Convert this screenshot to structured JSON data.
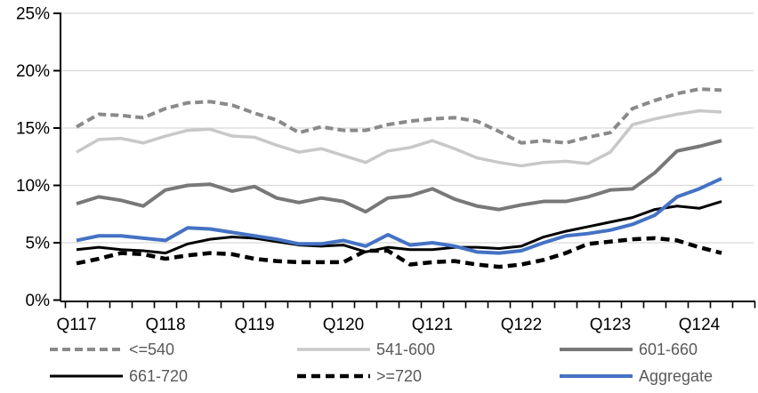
{
  "chart_data": {
    "type": "line",
    "title": "",
    "xlabel": "",
    "ylabel": "",
    "grid": true,
    "legend_position": "bottom",
    "ylim": [
      0,
      25
    ],
    "y_ticks": [
      {
        "label": "0%",
        "value": 0
      },
      {
        "label": "5%",
        "value": 5
      },
      {
        "label": "10%",
        "value": 10
      },
      {
        "label": "15%",
        "value": 15
      },
      {
        "label": "20%",
        "value": 20
      },
      {
        "label": "25%",
        "value": 25
      }
    ],
    "x_axis_labels": [
      {
        "label": "Q117",
        "index": 0
      },
      {
        "label": "Q118",
        "index": 4
      },
      {
        "label": "Q119",
        "index": 8
      },
      {
        "label": "Q120",
        "index": 12
      },
      {
        "label": "Q121",
        "index": 16
      },
      {
        "label": "Q122",
        "index": 20
      },
      {
        "label": "Q123",
        "index": 24
      },
      {
        "label": "Q124",
        "index": 28
      }
    ],
    "categories": [
      "Q117",
      "Q217",
      "Q317",
      "Q417",
      "Q118",
      "Q218",
      "Q318",
      "Q418",
      "Q119",
      "Q219",
      "Q319",
      "Q419",
      "Q120",
      "Q220",
      "Q320",
      "Q420",
      "Q121",
      "Q221",
      "Q321",
      "Q421",
      "Q122",
      "Q222",
      "Q322",
      "Q422",
      "Q123",
      "Q223",
      "Q323",
      "Q423",
      "Q124",
      "Q224"
    ],
    "series": [
      {
        "name": "<=540",
        "color": "#8a8a8a",
        "dash": "9 5",
        "width": 4,
        "values": [
          15.1,
          16.2,
          16.1,
          15.9,
          16.7,
          17.2,
          17.3,
          17.0,
          16.3,
          15.7,
          14.6,
          15.1,
          14.8,
          14.8,
          15.3,
          15.6,
          15.8,
          15.9,
          15.6,
          14.7,
          13.7,
          13.9,
          13.7,
          14.2,
          14.6,
          16.7,
          17.4,
          18.0,
          18.4,
          18.3
        ]
      },
      {
        "name": "541-600",
        "color": "#c8c8c8",
        "dash": null,
        "width": 3.5,
        "values": [
          12.9,
          14.0,
          14.1,
          13.7,
          14.3,
          14.8,
          14.9,
          14.3,
          14.2,
          13.5,
          12.9,
          13.2,
          12.6,
          12.0,
          13.0,
          13.3,
          13.9,
          13.2,
          12.4,
          12.0,
          11.7,
          12.0,
          12.1,
          11.9,
          12.9,
          15.3,
          15.8,
          16.2,
          16.5,
          16.4
        ]
      },
      {
        "name": "601-660",
        "color": "#787878",
        "dash": null,
        "width": 4,
        "values": [
          8.4,
          9.0,
          8.7,
          8.2,
          9.6,
          10.0,
          10.1,
          9.5,
          9.9,
          8.9,
          8.5,
          8.9,
          8.6,
          7.7,
          8.9,
          9.1,
          9.7,
          8.8,
          8.2,
          7.9,
          8.3,
          8.6,
          8.6,
          9.0,
          9.6,
          9.7,
          11.1,
          13.0,
          13.4,
          13.9
        ]
      },
      {
        "name": "661-720",
        "color": "#000000",
        "dash": null,
        "width": 3,
        "values": [
          4.4,
          4.6,
          4.4,
          4.3,
          4.1,
          4.9,
          5.3,
          5.5,
          5.4,
          5.1,
          4.8,
          4.7,
          4.8,
          4.2,
          4.6,
          4.4,
          4.4,
          4.6,
          4.6,
          4.5,
          4.7,
          5.5,
          6.0,
          6.4,
          6.8,
          7.2,
          7.9,
          8.2,
          8.0,
          8.6
        ]
      },
      {
        "name": ">=720",
        "color": "#000000",
        "dash": "10 6",
        "width": 4.5,
        "values": [
          3.2,
          3.6,
          4.1,
          4.0,
          3.6,
          3.9,
          4.1,
          4.0,
          3.6,
          3.4,
          3.3,
          3.3,
          3.3,
          4.3,
          4.3,
          3.1,
          3.3,
          3.4,
          3.1,
          2.9,
          3.1,
          3.5,
          4.1,
          4.9,
          5.1,
          5.3,
          5.4,
          5.2,
          4.6,
          4.1
        ]
      },
      {
        "name": "Aggregate",
        "color": "#4472c4",
        "dash": null,
        "width": 4,
        "values": [
          5.2,
          5.6,
          5.6,
          5.4,
          5.2,
          6.3,
          6.2,
          5.9,
          5.6,
          5.3,
          4.9,
          4.9,
          5.2,
          4.7,
          5.7,
          4.8,
          5.0,
          4.7,
          4.2,
          4.1,
          4.3,
          5.0,
          5.6,
          5.8,
          6.1,
          6.6,
          7.4,
          9.0,
          9.7,
          10.6
        ]
      }
    ],
    "style": {
      "gridline_color": "#d9d9d9",
      "axis_color": "#000000",
      "tick_label_color": "#000000",
      "legend_text_color": "#595959"
    }
  }
}
